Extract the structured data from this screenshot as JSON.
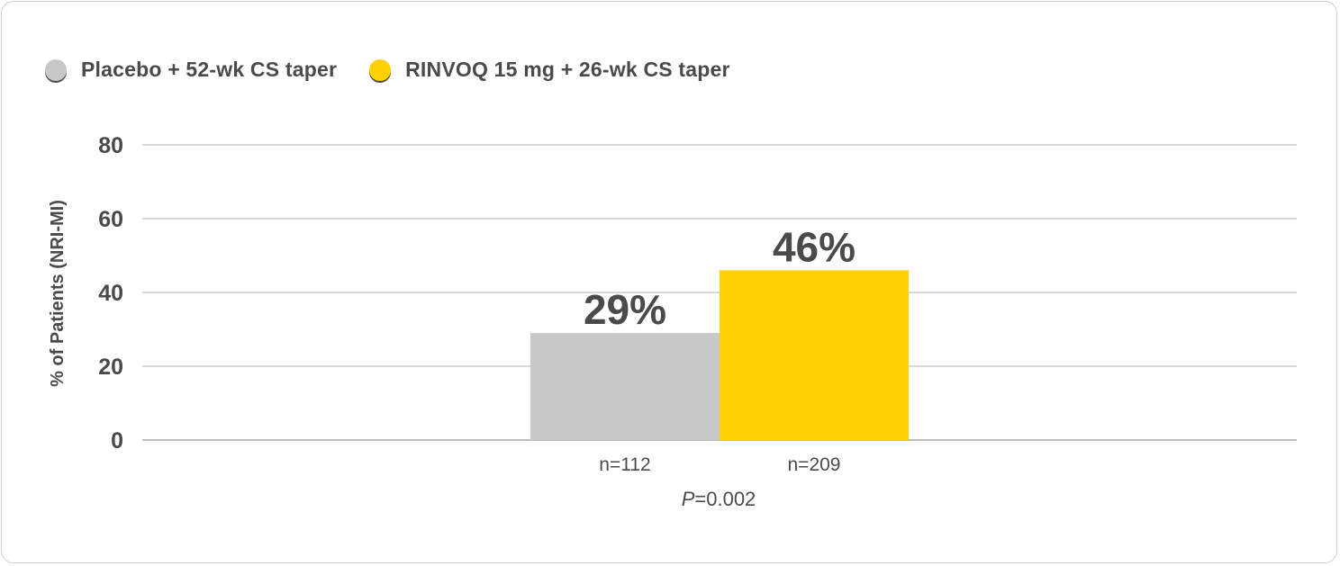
{
  "chart_data": {
    "type": "bar",
    "title": "",
    "xlabel": "",
    "ylabel": "% of Patients (NRI-MI)",
    "ylim": [
      0,
      80
    ],
    "yticks": [
      0,
      20,
      40,
      60,
      80
    ],
    "grid": true,
    "legend_placement": "top-left",
    "series": [
      {
        "name": "Placebo + 52-wk CS taper",
        "value": 29,
        "label": "29%",
        "n_label": "n=112",
        "color": "#c8c8c8"
      },
      {
        "name": "RINVOQ 15 mg + 26-wk CS taper",
        "value": 46,
        "label": "46%",
        "n_label": "n=209",
        "color": "#ffd100"
      }
    ],
    "annotation": {
      "p_symbol": "P",
      "p_value": "=0.002"
    }
  }
}
